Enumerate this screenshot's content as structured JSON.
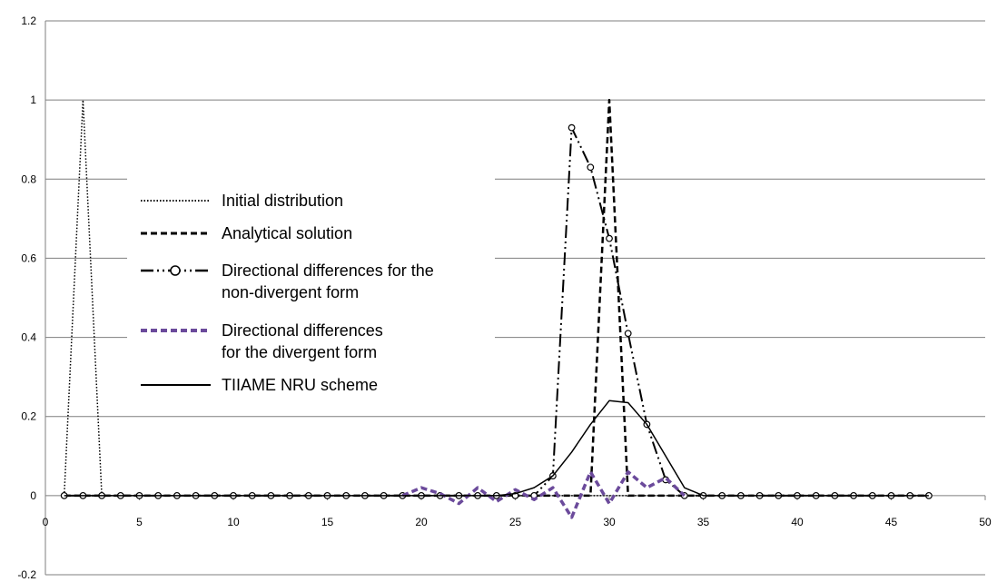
{
  "chart_data": {
    "type": "line",
    "xlim": [
      0,
      50
    ],
    "ylim": [
      -0.2,
      1.2
    ],
    "x_ticks": [
      "0",
      "5",
      "10",
      "15",
      "20",
      "25",
      "30",
      "35",
      "40",
      "45",
      "50"
    ],
    "y_ticks": [
      "-0.2",
      "0",
      "0.2",
      "0.4",
      "0.6",
      "0.8",
      "1",
      "1.2"
    ],
    "grid": "horizontal",
    "legend_position": "center-left",
    "series": [
      {
        "name": "Initial distribution",
        "style": "dotted",
        "color": "#000000",
        "marker": "none",
        "points": [
          [
            1,
            0
          ],
          [
            2,
            1
          ],
          [
            3,
            0
          ],
          [
            4,
            0
          ],
          [
            47,
            0
          ]
        ]
      },
      {
        "name": "Analytical solution",
        "style": "dashed",
        "color": "#000000",
        "marker": "none",
        "points": [
          [
            1,
            0
          ],
          [
            29,
            0
          ],
          [
            30,
            1
          ],
          [
            31,
            0
          ],
          [
            47,
            0
          ]
        ]
      },
      {
        "name": "Directional differences for the non-divergent form",
        "legend_lines": [
          "Directional differences for the",
          "non-divergent form"
        ],
        "style": "dash-dot-dot",
        "color": "#000000",
        "marker": "open-circle",
        "points": [
          [
            1,
            0
          ],
          [
            2,
            0
          ],
          [
            3,
            0
          ],
          [
            4,
            0
          ],
          [
            5,
            0
          ],
          [
            6,
            0
          ],
          [
            7,
            0
          ],
          [
            8,
            0
          ],
          [
            9,
            0
          ],
          [
            10,
            0
          ],
          [
            11,
            0
          ],
          [
            12,
            0
          ],
          [
            13,
            0
          ],
          [
            14,
            0
          ],
          [
            15,
            0
          ],
          [
            16,
            0
          ],
          [
            17,
            0
          ],
          [
            18,
            0
          ],
          [
            19,
            0
          ],
          [
            20,
            0
          ],
          [
            21,
            0
          ],
          [
            22,
            0
          ],
          [
            23,
            0
          ],
          [
            24,
            0
          ],
          [
            25,
            0
          ],
          [
            26,
            0
          ],
          [
            27,
            0.05
          ],
          [
            28,
            0.93
          ],
          [
            29,
            0.83
          ],
          [
            30,
            0.65
          ],
          [
            31,
            0.41
          ],
          [
            32,
            0.18
          ],
          [
            33,
            0.04
          ],
          [
            34,
            0
          ],
          [
            35,
            0
          ],
          [
            36,
            0
          ],
          [
            37,
            0
          ],
          [
            38,
            0
          ],
          [
            39,
            0
          ],
          [
            40,
            0
          ],
          [
            41,
            0
          ],
          [
            42,
            0
          ],
          [
            43,
            0
          ],
          [
            44,
            0
          ],
          [
            45,
            0
          ],
          [
            46,
            0
          ],
          [
            47,
            0
          ]
        ]
      },
      {
        "name": "Directional differences for the divergent form",
        "legend_lines": [
          "Directional differences",
          "for the divergent form"
        ],
        "style": "dashed",
        "color": "#6b4a9b",
        "marker": "none",
        "points": [
          [
            19,
            0
          ],
          [
            20,
            0.02
          ],
          [
            21,
            0.005
          ],
          [
            22,
            -0.02
          ],
          [
            23,
            0.02
          ],
          [
            24,
            -0.015
          ],
          [
            25,
            0.015
          ],
          [
            26,
            -0.01
          ],
          [
            27,
            0.02
          ],
          [
            28,
            -0.055
          ],
          [
            29,
            0.06
          ],
          [
            30,
            -0.02
          ],
          [
            31,
            0.06
          ],
          [
            32,
            0.02
          ],
          [
            33,
            0.045
          ],
          [
            34,
            0
          ]
        ]
      },
      {
        "name": "TIIAME NRU scheme",
        "style": "solid",
        "color": "#000000",
        "marker": "none",
        "points": [
          [
            1,
            0
          ],
          [
            24,
            0
          ],
          [
            25,
            0.005
          ],
          [
            26,
            0.02
          ],
          [
            27,
            0.05
          ],
          [
            28,
            0.11
          ],
          [
            29,
            0.18
          ],
          [
            30,
            0.24
          ],
          [
            31,
            0.235
          ],
          [
            32,
            0.18
          ],
          [
            33,
            0.1
          ],
          [
            34,
            0.02
          ],
          [
            35,
            0
          ],
          [
            47,
            0
          ]
        ]
      }
    ]
  }
}
